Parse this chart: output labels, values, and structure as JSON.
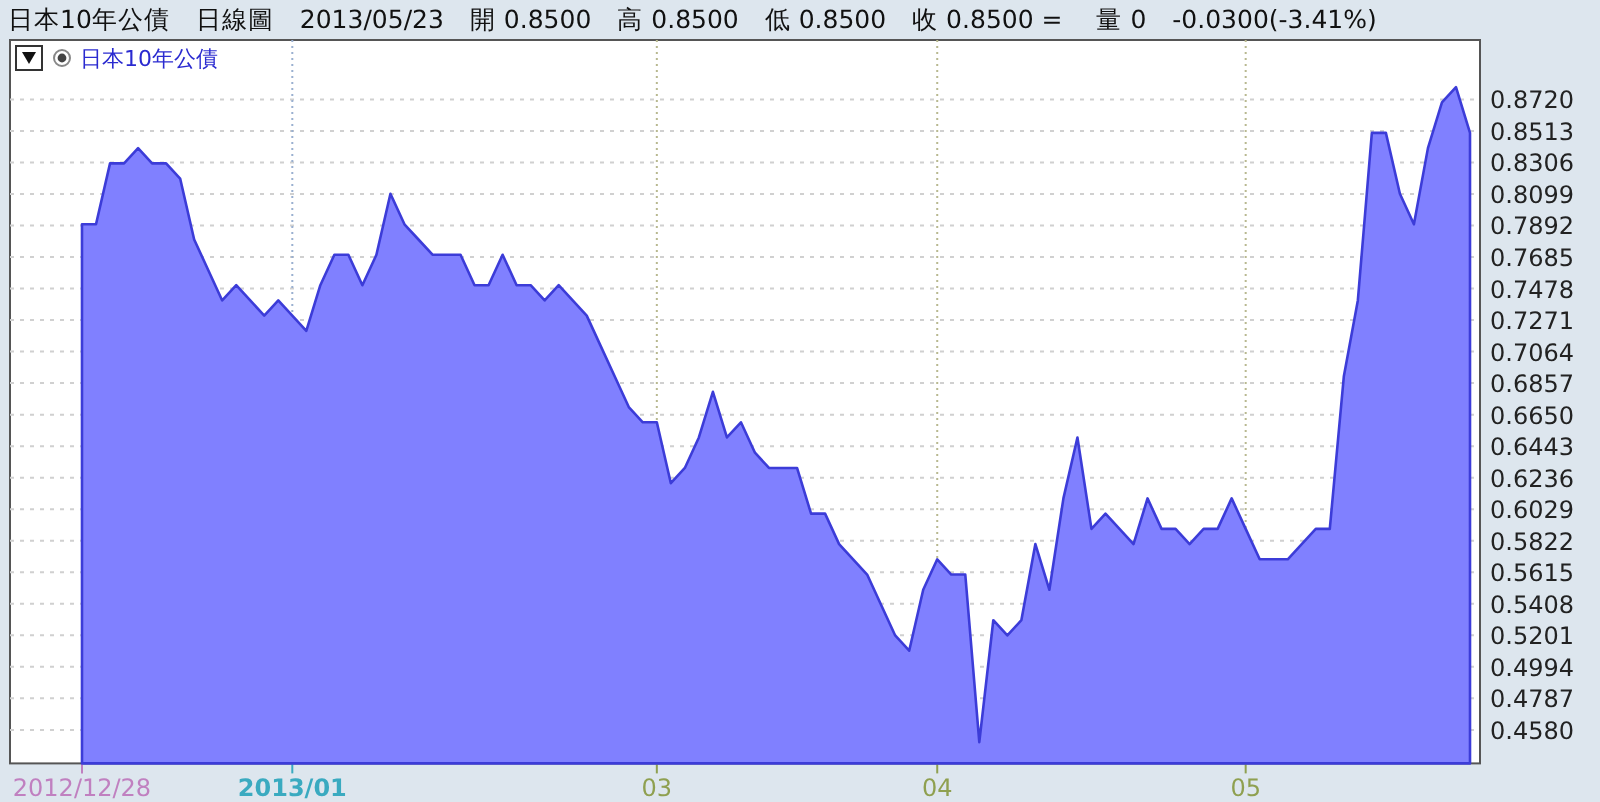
{
  "chart_data": {
    "type": "area",
    "title": "日本10年公債　日線圖　2013/05/23　開 0.8500　高 0.8500　低 0.8500　收 0.8500 =　 量 0　-0.0300(-3.41%)",
    "categories": [
      "2012/12/28",
      null,
      null,
      null,
      null,
      null,
      null,
      null,
      null,
      null,
      null,
      null,
      null,
      null,
      null,
      "2013/01",
      null,
      null,
      null,
      null,
      null,
      null,
      null,
      null,
      null,
      null,
      null,
      null,
      null,
      null,
      null,
      null,
      null,
      null,
      null,
      null,
      null,
      null,
      null,
      null,
      null,
      "03",
      null,
      null,
      null,
      null,
      null,
      null,
      null,
      null,
      null,
      null,
      null,
      null,
      null,
      null,
      null,
      null,
      null,
      null,
      null,
      "04",
      null,
      null,
      null,
      null,
      null,
      null,
      null,
      null,
      null,
      null,
      null,
      null,
      null,
      null,
      null,
      null,
      null,
      null,
      null,
      null,
      null,
      "05",
      null,
      null,
      null,
      null,
      null,
      null,
      null,
      null,
      null,
      null,
      null,
      null,
      null,
      null,
      null,
      null
    ],
    "series": [
      {
        "name": "日本10年公債",
        "color": "#8080ff",
        "values": [
          0.79,
          0.79,
          0.83,
          0.83,
          0.84,
          0.83,
          0.83,
          0.82,
          0.78,
          0.76,
          0.74,
          0.75,
          0.74,
          0.73,
          0.74,
          0.73,
          0.72,
          0.75,
          0.77,
          0.77,
          0.75,
          0.77,
          0.81,
          0.79,
          0.78,
          0.77,
          0.77,
          0.77,
          0.75,
          0.75,
          0.77,
          0.75,
          0.75,
          0.74,
          0.75,
          0.74,
          0.73,
          0.71,
          0.69,
          0.67,
          0.66,
          0.66,
          0.62,
          0.63,
          0.65,
          0.68,
          0.65,
          0.66,
          0.64,
          0.63,
          0.63,
          0.63,
          0.6,
          0.6,
          0.58,
          0.57,
          0.56,
          0.54,
          0.52,
          0.51,
          0.55,
          0.57,
          0.56,
          0.56,
          0.45,
          0.53,
          0.52,
          0.53,
          0.58,
          0.55,
          0.61,
          0.65,
          0.59,
          0.6,
          0.59,
          0.58,
          0.61,
          0.59,
          0.59,
          0.58,
          0.59,
          0.59,
          0.61,
          0.59,
          0.57,
          0.57,
          0.57,
          0.58,
          0.59,
          0.59,
          0.69,
          0.74,
          0.85,
          0.85,
          0.81,
          0.79,
          0.84,
          0.87,
          0.88,
          0.85
        ]
      }
    ],
    "ylim": [
      0.436,
      0.911
    ],
    "yticks": [
      {
        "value": 0.458,
        "label": "0.4580"
      },
      {
        "value": 0.4787,
        "label": "0.4787"
      },
      {
        "value": 0.4994,
        "label": "0.4994"
      },
      {
        "value": 0.5201,
        "label": "0.5201"
      },
      {
        "value": 0.5408,
        "label": "0.5408"
      },
      {
        "value": 0.5615,
        "label": "0.5615"
      },
      {
        "value": 0.5822,
        "label": "0.5822"
      },
      {
        "value": 0.6029,
        "label": "0.6029"
      },
      {
        "value": 0.6236,
        "label": "0.6236"
      },
      {
        "value": 0.6443,
        "label": "0.6443"
      },
      {
        "value": 0.665,
        "label": "0.6650"
      },
      {
        "value": 0.6857,
        "label": "0.6857"
      },
      {
        "value": 0.7064,
        "label": "0.7064"
      },
      {
        "value": 0.7271,
        "label": "0.7271"
      },
      {
        "value": 0.7478,
        "label": "0.7478"
      },
      {
        "value": 0.7685,
        "label": "0.7685"
      },
      {
        "value": 0.7892,
        "label": "0.7892"
      },
      {
        "value": 0.8099,
        "label": "0.8099"
      },
      {
        "value": 0.8306,
        "label": "0.8306"
      },
      {
        "value": 0.8513,
        "label": "0.8513"
      },
      {
        "value": 0.872,
        "label": "0.8720"
      }
    ],
    "grid": true,
    "legend": "top left"
  }
}
